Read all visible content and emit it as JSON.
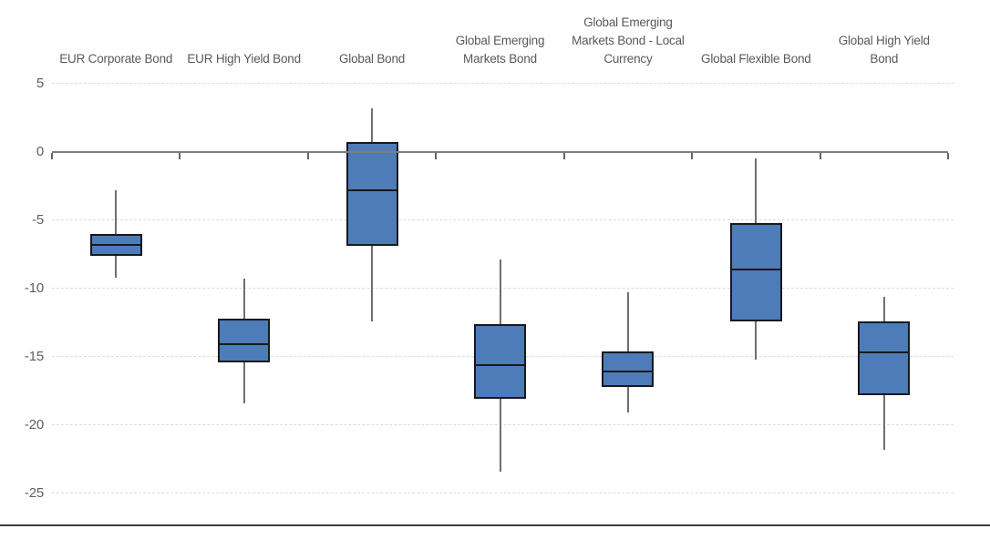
{
  "chart_data": {
    "type": "boxplot",
    "title": "",
    "xlabel": "",
    "ylabel": "",
    "categories": [
      "EUR Corporate Bond",
      "EUR High Yield Bond",
      "Global Bond",
      "Global Emerging Markets Bond",
      "Global Emerging Markets Bond - Local Currency",
      "Global Flexible Bond",
      "Global High Yield Bond"
    ],
    "category_label_lines": [
      [
        "EUR Corporate Bond"
      ],
      [
        "EUR High Yield Bond"
      ],
      [
        "Global Bond"
      ],
      [
        "Global Emerging",
        "Markets Bond"
      ],
      [
        "Global Emerging",
        "Markets Bond - Local",
        "Currency"
      ],
      [
        "Global Flexible Bond"
      ],
      [
        "Global High Yield",
        "Bond"
      ]
    ],
    "values": [
      {
        "category": "EUR Corporate Bond",
        "whisker_high": -2.8,
        "q3": -6.0,
        "median": -6.8,
        "q1": -7.6,
        "whisker_low": -9.2
      },
      {
        "category": "EUR High Yield Bond",
        "whisker_high": -9.3,
        "q3": -12.2,
        "median": -14.1,
        "q1": -15.4,
        "whisker_low": -18.4
      },
      {
        "category": "Global Bond",
        "whisker_high": 3.2,
        "q3": 0.7,
        "median": -2.8,
        "q1": -6.9,
        "whisker_low": -12.4
      },
      {
        "category": "Global Emerging Markets Bond",
        "whisker_high": -7.9,
        "q3": -12.6,
        "median": -15.6,
        "q1": -18.1,
        "whisker_low": -23.4
      },
      {
        "category": "Global Emerging Markets Bond - Local Currency",
        "whisker_high": -10.3,
        "q3": -14.6,
        "median": -16.1,
        "q1": -17.2,
        "whisker_low": -19.1
      },
      {
        "category": "Global Flexible Bond",
        "whisker_high": -0.5,
        "q3": -5.2,
        "median": -8.6,
        "q1": -12.4,
        "whisker_low": -15.2
      },
      {
        "category": "Global High Yield Bond",
        "whisker_high": -10.6,
        "q3": -12.4,
        "median": -14.7,
        "q1": -17.8,
        "whisker_low": -21.8
      }
    ],
    "yaxis": {
      "ticks": [
        5,
        0,
        -5,
        -10,
        -15,
        -20,
        -25
      ],
      "tick_labels": [
        "5",
        "0",
        "-5",
        "-10",
        "-15",
        "-20",
        "-25"
      ],
      "max": 5,
      "min": -25,
      "zero_baseline": true,
      "grid": "dashed-horizontal"
    },
    "colors": {
      "box_fill": "#4d7cb8",
      "box_border": "#15191f",
      "median_line": "#15191f",
      "whisker": "#6f6f6f",
      "zero_axis": "#7d7d7d",
      "axis_tick": "#636363",
      "gridline": "#dcdcdc",
      "tick_text": "#5f5f5f",
      "category_text": "#595959",
      "bottom_rule": "#3c3c3e",
      "background": "#ffffff"
    }
  }
}
